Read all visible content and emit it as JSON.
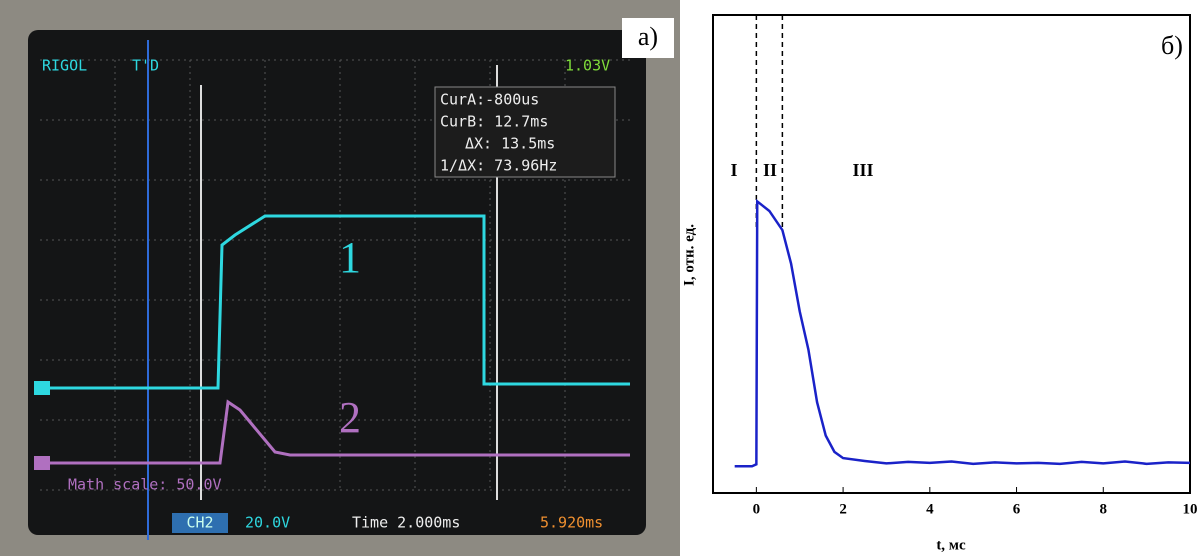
{
  "oscilloscope": {
    "panel_label": "а)",
    "brand": "RIGOL",
    "trigger_state": "T'D",
    "trigger_level": "1.03V",
    "readouts": [
      "CurA:-800us",
      "CurB: 12.7ms",
      "ΔX: 13.5ms",
      "1/ΔX: 73.96Hz"
    ],
    "trace_labels": [
      "1",
      "2"
    ],
    "math_scale": "Math scale: 50.0V",
    "channel": "CH2",
    "channel_scale": "20.0V",
    "timebase": "Time 2.000ms",
    "trigger_offset": "5.920ms"
  },
  "chart_data": {
    "type": "line",
    "panel_label": "б)",
    "x_label": "t, мс",
    "y_label": "I, отн. ед.",
    "xlim": [
      -1,
      10
    ],
    "xticks": [
      0,
      2,
      4,
      6,
      8,
      10
    ],
    "ylim": [
      0,
      1
    ],
    "markers": [
      0,
      0.6
    ],
    "region_labels": [
      "I",
      "II",
      "III"
    ],
    "series": [
      {
        "name": "I(t)",
        "color": "#1a22c8",
        "x": [
          -0.5,
          -0.1,
          0,
          0.02,
          0.3,
          0.6,
          0.8,
          1.0,
          1.2,
          1.4,
          1.6,
          1.8,
          2.0,
          2.5,
          3,
          3.5,
          4,
          4.5,
          5,
          5.5,
          6,
          6.5,
          7,
          7.5,
          8,
          8.5,
          9,
          9.5,
          10
        ],
        "values": [
          0.056,
          0.056,
          0.06,
          0.61,
          0.59,
          0.55,
          0.48,
          0.38,
          0.3,
          0.19,
          0.12,
          0.086,
          0.073,
          0.067,
          0.062,
          0.065,
          0.063,
          0.066,
          0.061,
          0.064,
          0.062,
          0.063,
          0.061,
          0.065,
          0.062,
          0.066,
          0.061,
          0.064,
          0.063
        ]
      }
    ]
  }
}
